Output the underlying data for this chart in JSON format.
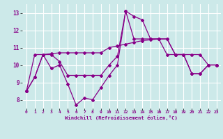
{
  "xlabel": "Windchill (Refroidissement éolien,°C)",
  "xlim": [
    -0.5,
    23.5
  ],
  "ylim": [
    7.5,
    13.5
  ],
  "yticks": [
    8,
    9,
    10,
    11,
    12,
    13
  ],
  "xticks": [
    0,
    1,
    2,
    3,
    4,
    5,
    6,
    7,
    8,
    9,
    10,
    11,
    12,
    13,
    14,
    15,
    16,
    17,
    18,
    19,
    20,
    21,
    22,
    23
  ],
  "background_color": "#cce9e9",
  "grid_color": "#ffffff",
  "line_color": "#880088",
  "series": [
    {
      "x": [
        0,
        1,
        2,
        3,
        4,
        5,
        6,
        7,
        8,
        9,
        10,
        11,
        12,
        13,
        14,
        15,
        16,
        17,
        18,
        19,
        20,
        21,
        22,
        23
      ],
      "y": [
        8.5,
        9.3,
        10.6,
        9.8,
        10.0,
        8.9,
        7.7,
        8.1,
        8.0,
        8.7,
        9.4,
        10.0,
        13.1,
        12.8,
        12.6,
        11.5,
        11.5,
        10.6,
        10.6,
        10.6,
        9.5,
        9.5,
        10.0,
        10.0
      ]
    },
    {
      "x": [
        0,
        1,
        2,
        3,
        4,
        5,
        6,
        7,
        8,
        9,
        10,
        11,
        12,
        13,
        14,
        15,
        16,
        17,
        18,
        19,
        20,
        21,
        22,
        23
      ],
      "y": [
        8.5,
        10.6,
        10.6,
        10.65,
        10.7,
        10.7,
        10.7,
        10.7,
        10.7,
        10.7,
        11.0,
        11.1,
        11.2,
        11.3,
        11.4,
        11.45,
        11.5,
        11.5,
        10.6,
        10.6,
        10.6,
        10.6,
        10.0,
        10.0
      ]
    },
    {
      "x": [
        0,
        1,
        2,
        3,
        4,
        5,
        6,
        7,
        8,
        9,
        10,
        11,
        12,
        13,
        14,
        15,
        16,
        17,
        18,
        19,
        20,
        21,
        22,
        23
      ],
      "y": [
        8.5,
        9.3,
        10.6,
        10.6,
        10.2,
        9.4,
        9.4,
        9.4,
        9.4,
        9.4,
        10.0,
        10.5,
        13.1,
        11.5,
        11.5,
        11.5,
        11.5,
        11.5,
        10.6,
        10.6,
        9.5,
        9.5,
        10.0,
        10.0
      ]
    }
  ]
}
